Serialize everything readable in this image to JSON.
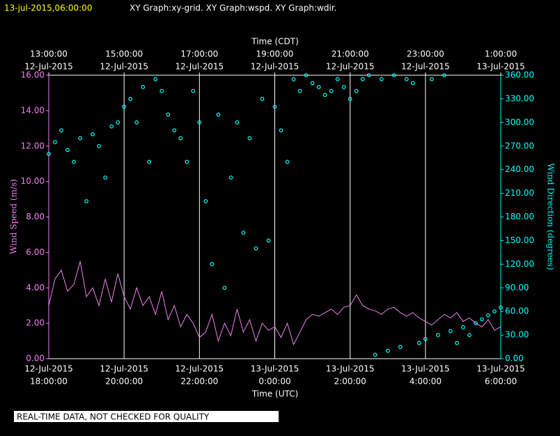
{
  "header": {
    "stamp": "13-jul-2015,06:00:00",
    "graphs": "XY Graph:xy-grid.  XY Graph:wspd.  XY Graph:wdir."
  },
  "footer": "REAL-TIME DATA, NOT CHECKED FOR QUALITY",
  "chart_data": {
    "type": "scatter-line",
    "x_label": "Time (UTC)",
    "x2_label": "Time (CDT)",
    "y_label": "Wind Speed (m/s)",
    "y2_label": "Wind Direction (degrees)",
    "x": [
      "2015-07-12 18:00",
      "2015-07-12 18:10",
      "2015-07-12 18:20",
      "2015-07-12 18:30",
      "2015-07-12 18:40",
      "2015-07-12 18:50",
      "2015-07-12 19:00",
      "2015-07-12 19:10",
      "2015-07-12 19:20",
      "2015-07-12 19:30",
      "2015-07-12 19:40",
      "2015-07-12 19:50",
      "2015-07-12 20:00",
      "2015-07-12 20:10",
      "2015-07-12 20:20",
      "2015-07-12 20:30",
      "2015-07-12 20:40",
      "2015-07-12 20:50",
      "2015-07-12 21:00",
      "2015-07-12 21:10",
      "2015-07-12 21:20",
      "2015-07-12 21:30",
      "2015-07-12 21:40",
      "2015-07-12 21:50",
      "2015-07-12 22:00",
      "2015-07-12 22:10",
      "2015-07-12 22:20",
      "2015-07-12 22:30",
      "2015-07-12 22:40",
      "2015-07-12 22:50",
      "2015-07-12 23:00",
      "2015-07-12 23:10",
      "2015-07-12 23:20",
      "2015-07-12 23:30",
      "2015-07-12 23:40",
      "2015-07-12 23:50",
      "2015-07-13 00:00",
      "2015-07-13 00:10",
      "2015-07-13 00:20",
      "2015-07-13 00:30",
      "2015-07-13 00:40",
      "2015-07-13 00:50",
      "2015-07-13 01:00",
      "2015-07-13 01:10",
      "2015-07-13 01:20",
      "2015-07-13 01:30",
      "2015-07-13 01:40",
      "2015-07-13 01:50",
      "2015-07-13 02:00",
      "2015-07-13 02:10",
      "2015-07-13 02:20",
      "2015-07-13 02:30",
      "2015-07-13 02:40",
      "2015-07-13 02:50",
      "2015-07-13 03:00",
      "2015-07-13 03:10",
      "2015-07-13 03:20",
      "2015-07-13 03:30",
      "2015-07-13 03:40",
      "2015-07-13 03:50",
      "2015-07-13 04:00",
      "2015-07-13 04:10",
      "2015-07-13 04:20",
      "2015-07-13 04:30",
      "2015-07-13 04:40",
      "2015-07-13 04:50",
      "2015-07-13 05:00",
      "2015-07-13 05:10",
      "2015-07-13 05:20",
      "2015-07-13 05:30",
      "2015-07-13 05:40",
      "2015-07-13 05:50",
      "2015-07-13 06:00"
    ],
    "series": [
      {
        "color": "#ee82ee",
        "values": [
          3,
          4.5,
          5,
          3.8,
          4.2,
          5.5,
          3.5,
          4,
          3,
          4.5,
          3.2,
          4.8,
          3.5,
          2.8,
          4,
          3,
          3.5,
          2.5,
          3.8,
          2.2,
          3,
          1.8,
          2.5,
          2,
          1.2,
          1.5,
          2.5,
          1,
          2,
          1.3,
          2.8,
          1.5,
          2.2,
          1,
          2,
          1.6,
          1.8,
          1.2,
          2,
          0.8,
          1.5,
          2.2,
          2.5,
          2.4,
          2.6,
          2.8,
          2.5,
          2.9,
          3,
          3.6,
          3,
          2.8,
          2.7,
          2.5,
          2.8,
          2.9,
          2.6,
          2.4,
          2.6,
          2.3,
          2.1,
          1.9,
          2.2,
          2.5,
          2.3,
          2.6,
          2.1,
          2.3,
          2,
          1.8,
          2.2,
          1.6,
          1.8
        ]
      },
      {
        "color": "#00ffff",
        "axis": "y2",
        "values": [
          260,
          275,
          290,
          265,
          250,
          280,
          200,
          285,
          270,
          230,
          295,
          300,
          320,
          330,
          300,
          345,
          250,
          355,
          340,
          310,
          290,
          280,
          250,
          340,
          300,
          200,
          120,
          310,
          90,
          230,
          300,
          160,
          280,
          140,
          330,
          150,
          320,
          290,
          250,
          355,
          340,
          360,
          350,
          345,
          335,
          340,
          355,
          345,
          330,
          340,
          355,
          360,
          5,
          355,
          10,
          360,
          15,
          355,
          350,
          20,
          25,
          355,
          30,
          360,
          35,
          20,
          40,
          30,
          45,
          50,
          55,
          60,
          65
        ]
      }
    ],
    "xlim": [
      "2015-07-12 18:00",
      "2015-07-13 06:00"
    ],
    "xticks": [
      {
        "value": "2015-07-12 18:00",
        "label": [
          "12-Jul-2015",
          "18:00:00"
        ]
      },
      {
        "value": "2015-07-12 20:00",
        "label": [
          "12-Jul-2015",
          "20:00:00"
        ]
      },
      {
        "value": "2015-07-12 22:00",
        "label": [
          "12-Jul-2015",
          "22:00:00"
        ]
      },
      {
        "value": "2015-07-13 00:00",
        "label": [
          "13-Jul-2015",
          "0:00:00"
        ]
      },
      {
        "value": "2015-07-13 02:00",
        "label": [
          "13-Jul-2015",
          "2:00:00"
        ]
      },
      {
        "value": "2015-07-13 04:00",
        "label": [
          "13-Jul-2015",
          "4:00:00"
        ]
      },
      {
        "value": "2015-07-13 06:00",
        "label": [
          "13-Jul-2015",
          "6:00:00"
        ]
      }
    ],
    "x2ticks": [
      {
        "value": "2015-07-12 18:00",
        "label": [
          "13:00:00",
          "12-Jul-2015"
        ]
      },
      {
        "value": "2015-07-12 20:00",
        "label": [
          "15:00:00",
          "12-Jul-2015"
        ]
      },
      {
        "value": "2015-07-12 22:00",
        "label": [
          "17:00:00",
          "12-Jul-2015"
        ]
      },
      {
        "value": "2015-07-13 00:00",
        "label": [
          "19:00:00",
          "12-Jul-2015"
        ]
      },
      {
        "value": "2015-07-13 02:00",
        "label": [
          "21:00:00",
          "12-Jul-2015"
        ]
      },
      {
        "value": "2015-07-13 04:00",
        "label": [
          "23:00:00",
          "12-Jul-2015"
        ]
      },
      {
        "value": "2015-07-13 06:00",
        "label": [
          "1:00:00",
          "13-Jul-2015"
        ]
      }
    ],
    "ylim": [
      0,
      16
    ],
    "yticks": [
      {
        "value": 0,
        "label": "0.00"
      },
      {
        "value": 2,
        "label": "2.00"
      },
      {
        "value": 4,
        "label": "4.00"
      },
      {
        "value": 6,
        "label": "6.00"
      },
      {
        "value": 8,
        "label": "8.00"
      },
      {
        "value": 10,
        "label": "10.00"
      },
      {
        "value": 12,
        "label": "12.00"
      },
      {
        "value": 14,
        "label": "14.00"
      },
      {
        "value": 16,
        "label": "16.00"
      }
    ],
    "y2lim": [
      0,
      360
    ],
    "y2ticks": [
      {
        "value": 0,
        "label": "0.00"
      },
      {
        "value": 30,
        "label": "30.00"
      },
      {
        "value": 60,
        "label": "60.00"
      },
      {
        "value": 90,
        "label": "90.00"
      },
      {
        "value": 120,
        "label": "120.00"
      },
      {
        "value": 150,
        "label": "150.00"
      },
      {
        "value": 180,
        "label": "180.00"
      },
      {
        "value": 210,
        "label": "210.00"
      },
      {
        "value": 240,
        "label": "240.00"
      },
      {
        "value": 270,
        "label": "270.00"
      },
      {
        "value": 300,
        "label": "300.00"
      },
      {
        "value": 330,
        "label": "330.00"
      },
      {
        "value": 360,
        "label": "360.00"
      }
    ],
    "grid": true
  }
}
